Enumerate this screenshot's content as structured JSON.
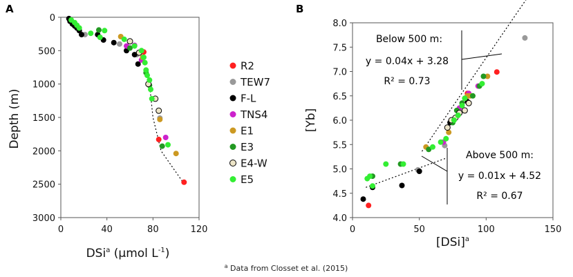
{
  "footnote": {
    "sup": "a",
    "text": " Data from Closset et al. (2015)"
  },
  "legend": {
    "entries": [
      {
        "name": "R2",
        "color": "#ff2020"
      },
      {
        "name": "TEW7",
        "color": "#999999"
      },
      {
        "name": "F-L",
        "color": "#000000"
      },
      {
        "name": "TNS4",
        "color": "#cc22cc"
      },
      {
        "name": "E1",
        "color": "#cc9922"
      },
      {
        "name": "E3",
        "color": "#229922"
      },
      {
        "name": "E4-W",
        "color": "#ede5c8"
      },
      {
        "name": "E5",
        "color": "#33ee33"
      }
    ]
  },
  "chart_data": [
    {
      "panel": "A",
      "type": "scatter",
      "xlabel_main": "DSi",
      "xlabel_sup": "a",
      "xlabel_unit_start": " (µmol L",
      "xlabel_unit_sup": "-1",
      "xlabel_unit_end": ")",
      "ylabel": "Depth (m)",
      "xlim": [
        0,
        120
      ],
      "ylim": [
        3000,
        0
      ],
      "xticks": [
        "0",
        "40",
        "80",
        "120"
      ],
      "yticks": [
        "0",
        "500",
        "1000",
        "1500",
        "2000",
        "2500",
        "3000"
      ],
      "trendline": {
        "style": "dotted",
        "points": [
          [
            77,
            1000
          ],
          [
            80,
            1500
          ],
          [
            87,
            2000
          ],
          [
            106,
            2470
          ]
        ]
      },
      "series": [
        {
          "name": "R2",
          "points": [
            [
              72,
              520
            ],
            [
              85,
              1830
            ],
            [
              107,
              2470
            ]
          ]
        },
        {
          "name": "TEW7",
          "points": [
            [
              21,
              260
            ],
            [
              51,
              400
            ],
            [
              66,
              560
            ],
            [
              86,
              1510
            ]
          ]
        },
        {
          "name": "F-L",
          "points": [
            [
              7,
              20
            ],
            [
              8,
              60
            ],
            [
              10,
              100
            ],
            [
              12,
              130
            ],
            [
              14,
              160
            ],
            [
              16,
              200
            ],
            [
              18,
              260
            ],
            [
              32,
              260
            ],
            [
              37,
              340
            ],
            [
              46,
              380
            ],
            [
              57,
              500
            ],
            [
              64,
              560
            ],
            [
              67,
              700
            ]
          ]
        },
        {
          "name": "TNS4",
          "points": [
            [
              57,
              430
            ],
            [
              64,
              420
            ],
            [
              70,
              640
            ],
            [
              91,
              1800
            ]
          ]
        },
        {
          "name": "E1",
          "points": [
            [
              52,
              290
            ],
            [
              71,
              600
            ],
            [
              86,
              1530
            ],
            [
              100,
              2040
            ]
          ]
        },
        {
          "name": "E3",
          "points": [
            [
              33,
              190
            ],
            [
              60,
              460
            ],
            [
              74,
              830
            ],
            [
              77,
              1020
            ],
            [
              88,
              1930
            ]
          ]
        },
        {
          "name": "E4-W",
          "points": [
            [
              60,
              360
            ],
            [
              68,
              530
            ],
            [
              76,
              1000
            ],
            [
              82,
              1220
            ],
            [
              85,
              1400
            ]
          ]
        },
        {
          "name": "E5",
          "points": [
            [
              9,
              40
            ],
            [
              12,
              80
            ],
            [
              14,
              120
            ],
            [
              16,
              160
            ],
            [
              26,
              240
            ],
            [
              34,
              300
            ],
            [
              38,
              200
            ],
            [
              55,
              330
            ],
            [
              64,
              430
            ],
            [
              70,
              500
            ],
            [
              72,
              600
            ],
            [
              73,
              680
            ],
            [
              74,
              790
            ],
            [
              75,
              870
            ],
            [
              77,
              940
            ],
            [
              78,
              1080
            ],
            [
              79,
              1220
            ],
            [
              93,
              1910
            ]
          ]
        }
      ]
    },
    {
      "panel": "B",
      "type": "scatter",
      "xlabel": "[DSi]",
      "xlabel_sup": "a",
      "ylabel": "[Yb]",
      "xlim": [
        0,
        150
      ],
      "ylim": [
        4.0,
        8.0
      ],
      "xticks": [
        "0",
        "50",
        "100",
        "150"
      ],
      "yticks": [
        "4.0",
        "4.5",
        "5.0",
        "5.5",
        "6.0",
        "6.5",
        "7.0",
        "7.5",
        "8.0"
      ],
      "fits": [
        {
          "label": "Below 500 m",
          "equation": "y = 0.04x + 3.28",
          "r2": "R² = 0.73",
          "slope": 0.04,
          "intercept": 3.28,
          "x_range": [
            52,
            130
          ]
        },
        {
          "label": "Above 500 m",
          "equation": "y = 0.01x + 4.52",
          "r2": "R² = 0.67",
          "slope": 0.01,
          "intercept": 4.52,
          "x_range": [
            10,
            70
          ]
        }
      ],
      "series": [
        {
          "name": "R2",
          "points": [
            [
              12,
              4.25
            ],
            [
              86,
              6.55
            ],
            [
              108,
              6.99
            ]
          ]
        },
        {
          "name": "TEW7",
          "points": [
            [
              49,
              4.98
            ],
            [
              69,
              5.48
            ],
            [
              129,
              7.69
            ],
            [
              85,
              6.45
            ]
          ]
        },
        {
          "name": "F-L",
          "points": [
            [
              8,
              4.38
            ],
            [
              15,
              4.62
            ],
            [
              37,
              4.66
            ],
            [
              50,
              4.95
            ],
            [
              73,
              5.95
            ],
            [
              86,
              6.38
            ]
          ]
        },
        {
          "name": "TNS4",
          "points": [
            [
              68,
              5.55
            ],
            [
              87,
              6.55
            ],
            [
              94,
              6.7
            ],
            [
              80,
              6.25
            ]
          ]
        },
        {
          "name": "E1",
          "points": [
            [
              55,
              5.45
            ],
            [
              72,
              5.75
            ],
            [
              86,
              6.5
            ],
            [
              88,
              6.5
            ],
            [
              101,
              6.9
            ]
          ]
        },
        {
          "name": "E3",
          "points": [
            [
              15,
              4.85
            ],
            [
              36,
              5.1
            ],
            [
              57,
              5.4
            ],
            [
              75,
              5.95
            ],
            [
              78,
              6.2
            ],
            [
              82,
              6.35
            ],
            [
              90,
              6.5
            ],
            [
              95,
              6.7
            ],
            [
              98,
              6.9
            ]
          ]
        },
        {
          "name": "E4-W",
          "points": [
            [
              71,
              5.85
            ],
            [
              74,
              6.0
            ],
            [
              77,
              6.05
            ],
            [
              80,
              6.15
            ],
            [
              84,
              6.2
            ],
            [
              87,
              6.35
            ]
          ]
        },
        {
          "name": "E5",
          "points": [
            [
              11,
              4.8
            ],
            [
              13,
              4.85
            ],
            [
              15,
              4.65
            ],
            [
              25,
              5.1
            ],
            [
              38,
              5.1
            ],
            [
              60,
              5.45
            ],
            [
              66,
              5.55
            ],
            [
              70,
              5.62
            ],
            [
              76,
              6.0
            ],
            [
              79,
              6.1
            ],
            [
              82,
              6.3
            ],
            [
              84,
              6.45
            ],
            [
              97,
              6.75
            ]
          ]
        }
      ]
    }
  ]
}
